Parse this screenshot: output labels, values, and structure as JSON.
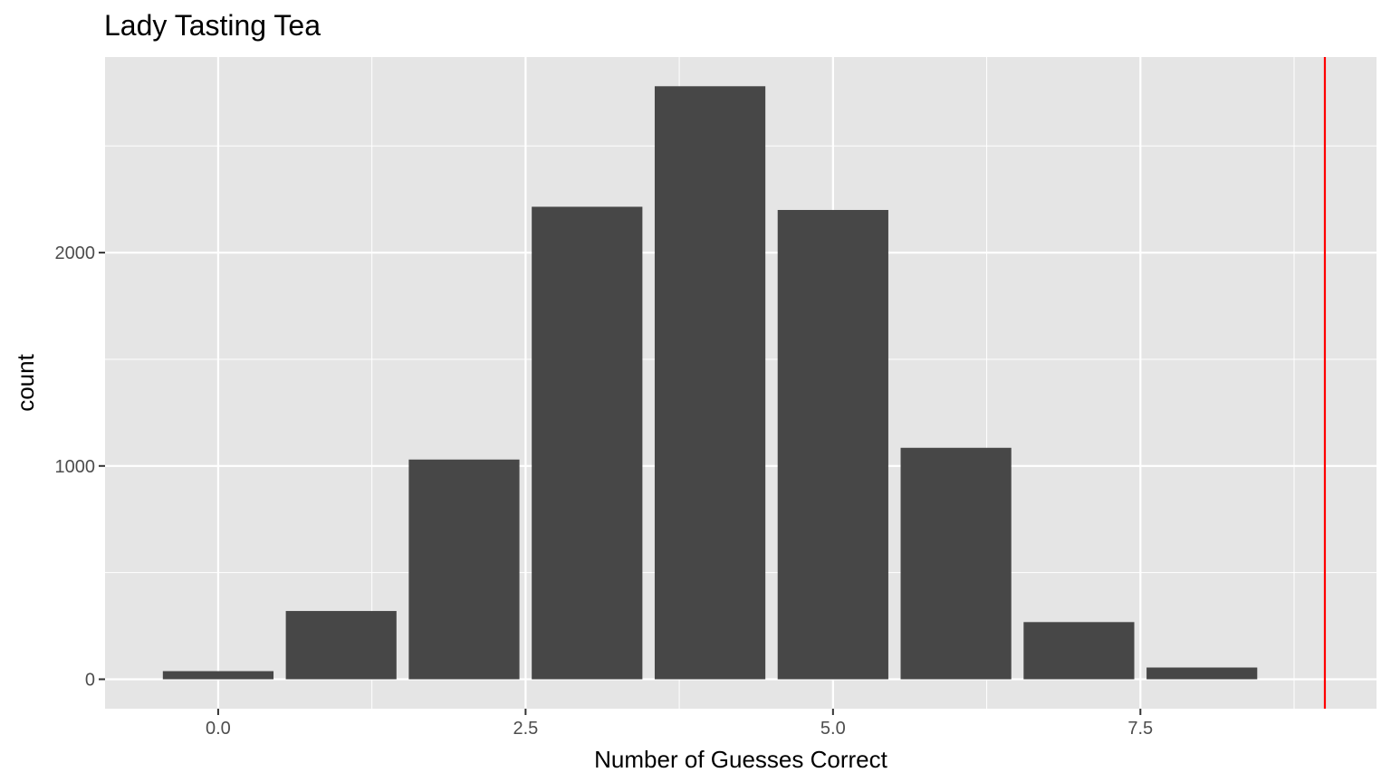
{
  "chart_data": {
    "type": "bar",
    "title": "Lady Tasting Tea",
    "xlabel": "Number of Guesses Correct",
    "ylabel": "count",
    "x": [
      0,
      1,
      2,
      3,
      4,
      5,
      6,
      7,
      8
    ],
    "values": [
      38,
      320,
      1030,
      2215,
      2780,
      2200,
      1085,
      268,
      55
    ],
    "xlim": [
      -0.92,
      9.42
    ],
    "ylim": [
      -138,
      2917
    ],
    "x_ticks": [
      0,
      2.5,
      5,
      7.5
    ],
    "x_tick_labels": [
      "0.0",
      "2.5",
      "5.0",
      "7.5"
    ],
    "y_ticks": [
      0,
      1000,
      2000
    ],
    "y_tick_labels": [
      "0",
      "1000",
      "2000"
    ],
    "reference_line": {
      "x": 9,
      "color": "#ff0000"
    },
    "bar_color": "#474747",
    "panel_background": "#e5e5e5",
    "grid": true,
    "legend": "none"
  }
}
